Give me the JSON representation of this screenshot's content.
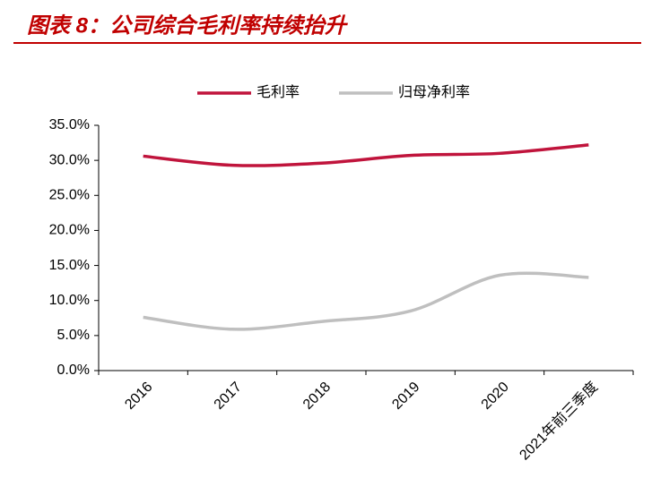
{
  "chart_data": {
    "type": "line",
    "title": "图表 8：公司综合毛利率持续抬升",
    "categories": [
      "2016",
      "2017",
      "2018",
      "2019",
      "2020",
      "2021年前三季度"
    ],
    "series": [
      {
        "name": "毛利率",
        "color": "#c0143c",
        "values": [
          30.6,
          29.3,
          29.6,
          30.7,
          31.0,
          32.2
        ]
      },
      {
        "name": "归母净利率",
        "color": "#bfbfbf",
        "values": [
          7.6,
          5.9,
          7.0,
          8.5,
          13.6,
          13.3
        ]
      }
    ],
    "ylim": [
      0,
      35
    ],
    "yticks": [
      {
        "value": 0,
        "label": "0.0%"
      },
      {
        "value": 5,
        "label": "5.0%"
      },
      {
        "value": 10,
        "label": "10.0%"
      },
      {
        "value": 15,
        "label": "15.0%"
      },
      {
        "value": 20,
        "label": "20.0%"
      },
      {
        "value": 25,
        "label": "25.0%"
      },
      {
        "value": 30,
        "label": "30.0%"
      },
      {
        "value": 35,
        "label": "35.0%"
      }
    ],
    "legend": "top"
  }
}
